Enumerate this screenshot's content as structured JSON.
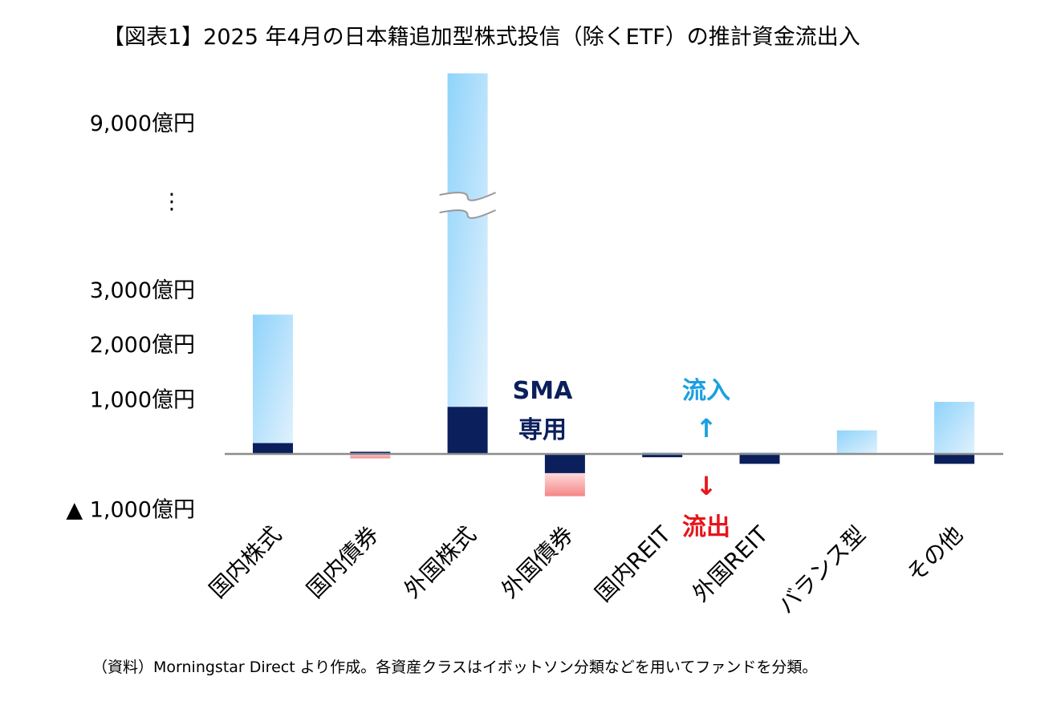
{
  "chart_data": {
    "type": "bar",
    "stacked": true,
    "title": "【図表1】2025 年4月の日本籍追加型株式投信（除くETF）の推計資金流出入",
    "categories": [
      "国内株式",
      "国内債券",
      "外国株式",
      "外国債券",
      "国内REIT",
      "外国REIT",
      "バランス型",
      "その他"
    ],
    "series": [
      {
        "key": "sma",
        "values": [
          200,
          40,
          860,
          -350,
          -60,
          -180,
          0,
          -180
        ]
      },
      {
        "key": "other",
        "values": [
          2340,
          -80,
          9040,
          -420,
          30,
          30,
          430,
          950
        ]
      }
    ],
    "unit": "億円",
    "y_axis": {
      "broken": true,
      "break_between": [
        3000,
        9000
      ],
      "ticks": [
        {
          "value": 9000,
          "label": "9,000億円"
        },
        {
          "value": null,
          "label": "⋮"
        },
        {
          "value": 3000,
          "label": "3,000億円"
        },
        {
          "value": 2000,
          "label": "2,000億円"
        },
        {
          "value": 1000,
          "label": "1,000億円"
        },
        {
          "value": -1000,
          "label": "▲ 1,000億円"
        }
      ]
    },
    "annotations": {
      "sma_line1": "SMA",
      "sma_line2": "専用",
      "inflow": "流入",
      "inflow_arrow": "↑",
      "outflow_arrow": "↓",
      "outflow": "流出"
    },
    "colors": {
      "sma": "#0b1f5c",
      "inflow_light": "#8fd3fb",
      "inflow_pale": "#e0f1fc",
      "outflow_light": "#ffd9da",
      "outflow_dark": "#f58686",
      "inflow_text": "#1aa0e0",
      "outflow_text": "#e8141a",
      "axis": "#8c8c8c"
    },
    "grid": false,
    "legend": "none",
    "source": "（資料）Morningstar Direct より作成。各資産クラスはイボットソン分類などを用いてファンドを分類。"
  }
}
